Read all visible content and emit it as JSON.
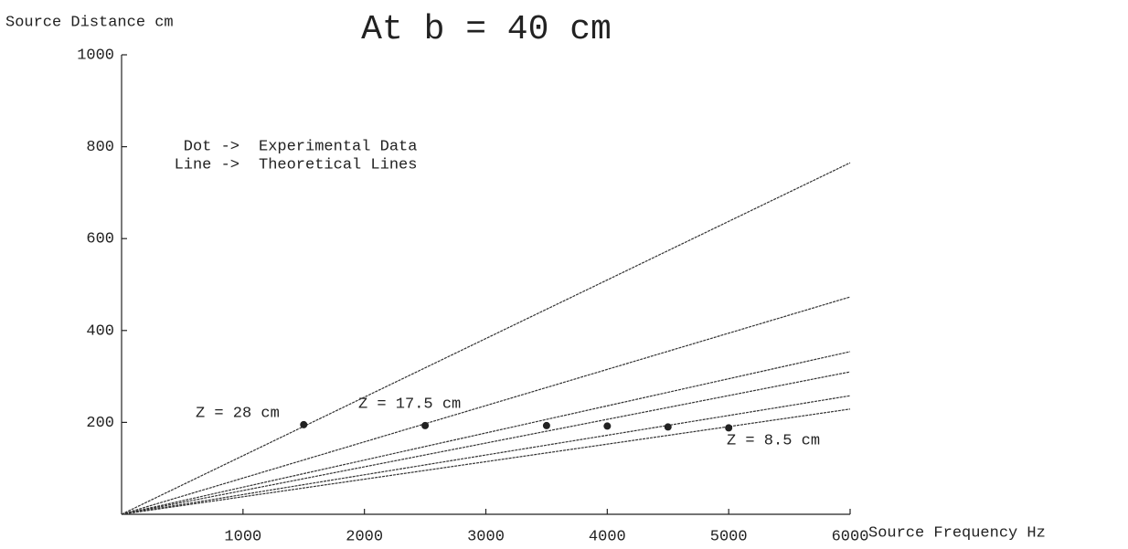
{
  "chart_data": {
    "type": "line",
    "title": "At b = 40 cm",
    "y_label": "Source Distance cm",
    "x_label": "Source Frequency Hz",
    "annotations": [
      "Dot ->",
      "Experimental Data",
      "Line ->",
      "Theoretical Lines",
      "Z = 28 cm",
      "Z = 17.5 cm",
      "Z = 8.5 cm"
    ],
    "x": [
      0,
      6000
    ],
    "series": [
      {
        "color": "#333333",
        "values": [
          0,
          765
        ]
      },
      {
        "color": "#333333",
        "values": [
          0,
          473
        ]
      },
      {
        "color": "#333333",
        "values": [
          0,
          354
        ]
      },
      {
        "color": "#333333",
        "values": [
          0,
          310
        ]
      },
      {
        "color": "#333333",
        "values": [
          0,
          258
        ]
      },
      {
        "color": "#333333",
        "values": [
          0,
          229
        ]
      }
    ],
    "points": {
      "color": "#222222",
      "x": [
        1500,
        2500,
        3500,
        4000,
        4500,
        5000
      ],
      "values": [
        195,
        193,
        193,
        192,
        190,
        188
      ]
    },
    "xlim": [
      0,
      6000
    ],
    "xticks": [
      1000,
      2000,
      3000,
      4000,
      5000,
      6000
    ],
    "ylim": [
      0,
      1000
    ],
    "yticks": [
      200,
      400,
      600,
      800,
      1000
    ]
  }
}
